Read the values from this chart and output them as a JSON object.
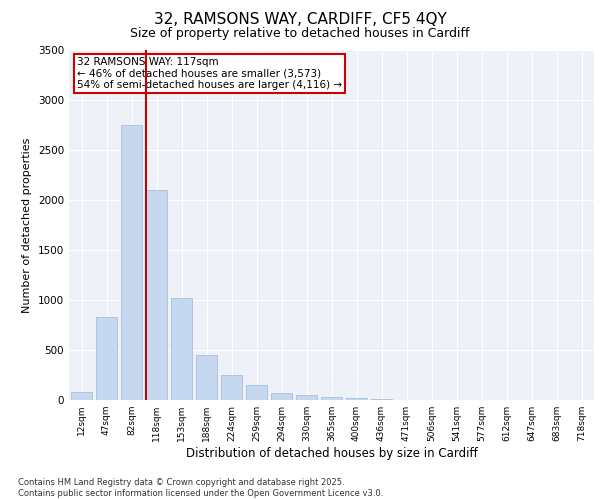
{
  "title1": "32, RAMSONS WAY, CARDIFF, CF5 4QY",
  "title2": "Size of property relative to detached houses in Cardiff",
  "xlabel": "Distribution of detached houses by size in Cardiff",
  "ylabel": "Number of detached properties",
  "categories": [
    "12sqm",
    "47sqm",
    "82sqm",
    "118sqm",
    "153sqm",
    "188sqm",
    "224sqm",
    "259sqm",
    "294sqm",
    "330sqm",
    "365sqm",
    "400sqm",
    "436sqm",
    "471sqm",
    "506sqm",
    "541sqm",
    "577sqm",
    "612sqm",
    "647sqm",
    "683sqm",
    "718sqm"
  ],
  "values": [
    80,
    830,
    2750,
    2100,
    1020,
    450,
    250,
    150,
    75,
    50,
    30,
    20,
    10,
    5,
    2,
    1,
    1,
    0,
    0,
    0,
    0
  ],
  "bar_color": "#c5d8f0",
  "bar_edge_color": "#a0b8d8",
  "red_line_x": 3,
  "annotation_text": "32 RAMSONS WAY: 117sqm\n← 46% of detached houses are smaller (3,573)\n54% of semi-detached houses are larger (4,116) →",
  "annotation_box_color": "#ffffff",
  "annotation_box_edgecolor": "#cc0000",
  "ylim": [
    0,
    3500
  ],
  "yticks": [
    0,
    500,
    1000,
    1500,
    2000,
    2500,
    3000,
    3500
  ],
  "background_color": "#eef2f8",
  "footer_line1": "Contains HM Land Registry data © Crown copyright and database right 2025.",
  "footer_line2": "Contains public sector information licensed under the Open Government Licence v3.0.",
  "title_fontsize": 11,
  "subtitle_fontsize": 9
}
